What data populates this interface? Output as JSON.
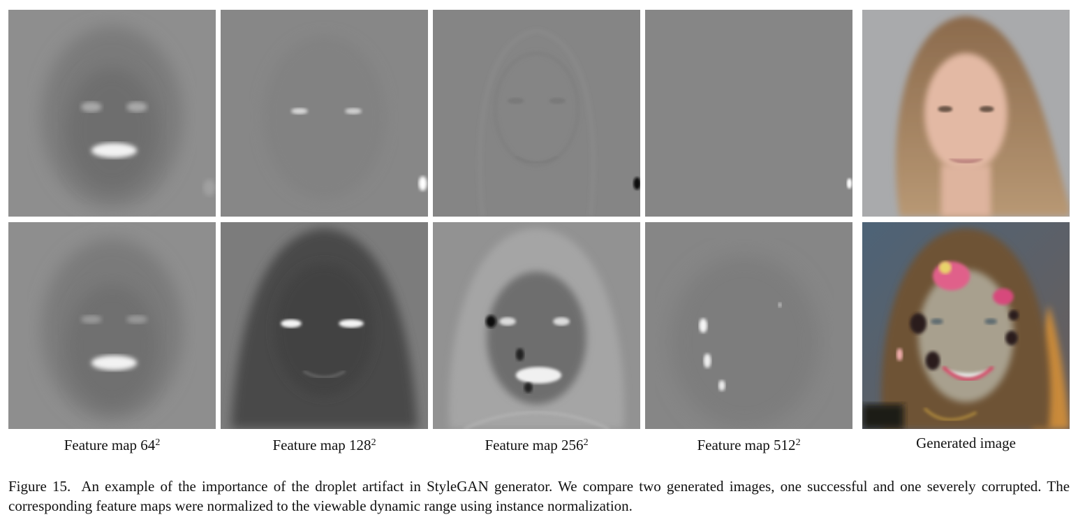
{
  "figure": {
    "column_labels": [
      {
        "text": "Feature map 64",
        "sup": "2"
      },
      {
        "text": "Feature map 128",
        "sup": "2"
      },
      {
        "text": "Feature map 256",
        "sup": "2"
      },
      {
        "text": "Feature map 512",
        "sup": "2"
      },
      {
        "text": "Generated image",
        "sup": ""
      }
    ],
    "caption": {
      "label": "Figure 15.",
      "text": "An example of the importance of the droplet artifact in StyleGAN generator. We compare two generated images, one successful and one severely corrupted. The corresponding feature maps were normalized to the viewable dynamic range using instance normalization."
    }
  }
}
